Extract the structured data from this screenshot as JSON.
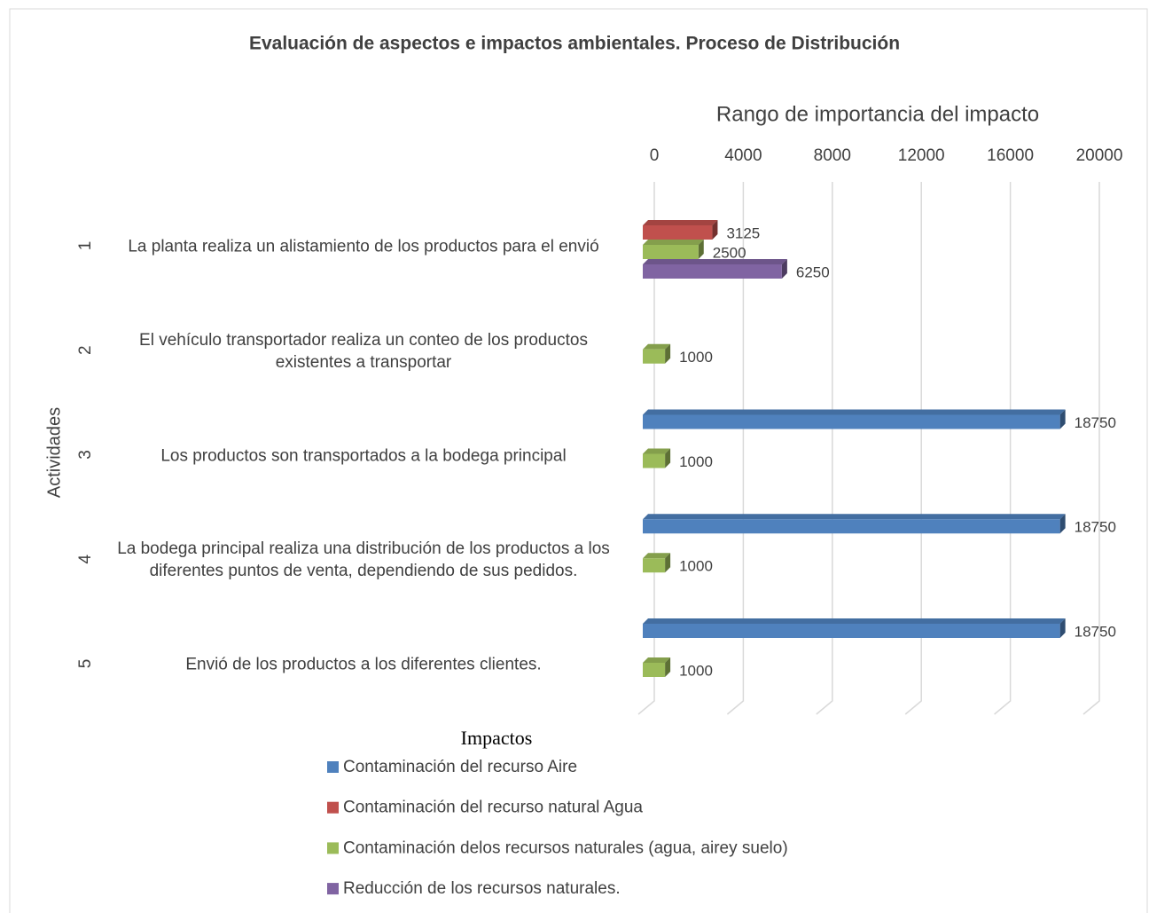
{
  "chart_data": {
    "type": "bar3d_horizontal",
    "title": "Evaluación de aspectos e impactos ambientales. Proceso de Distribución",
    "x_axis_label": "Rango de importancia del impacto",
    "y_axis_label": "Actividades",
    "legend_title": "Impactos",
    "category_groups": [
      "1",
      "2",
      "3",
      "4",
      "5"
    ],
    "categories": [
      "La planta realiza un alistamiento de los productos para el envió",
      "El vehículo transportador realiza un conteo de los productos existentes a transportar",
      "Los productos son transportados a la bodega principal",
      "La bodega principal realiza una distribución de los productos a los diferentes puntos de venta, dependiendo de sus pedidos.",
      "Envió de los productos a los diferentes clientes."
    ],
    "series": [
      {
        "name": "Contaminación del recurso Aire",
        "color": "#4f81bd",
        "values": [
          null,
          null,
          18750,
          18750,
          18750
        ]
      },
      {
        "name": "Contaminación del recurso natural Agua",
        "color": "#c0504d",
        "values": [
          3125,
          null,
          null,
          null,
          null
        ]
      },
      {
        "name": "Contaminación delos recursos naturales (agua, airey suelo)",
        "color": "#9bbb59",
        "values": [
          2500,
          1000,
          1000,
          1000,
          1000
        ]
      },
      {
        "name": "Reducción de los recursos naturales.",
        "color": "#8064a2",
        "values": [
          6250,
          null,
          null,
          null,
          null
        ]
      }
    ],
    "xlim": [
      0,
      20000
    ],
    "xticks": [
      0,
      4000,
      8000,
      12000,
      16000,
      20000
    ],
    "grid": true,
    "legend_position": "bottom"
  }
}
